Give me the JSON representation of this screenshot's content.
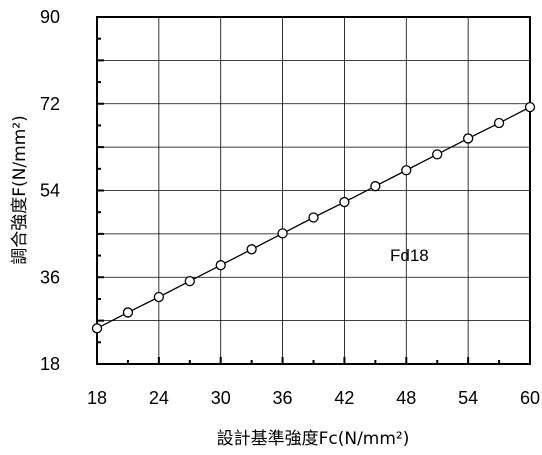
{
  "chart_data": {
    "type": "line",
    "series": [
      {
        "x": [
          18,
          21,
          24,
          27,
          30,
          33,
          36,
          39,
          42,
          45,
          48,
          51,
          54,
          57,
          60
        ],
        "y": [
          25.4,
          28.7,
          31.9,
          35.2,
          38.5,
          41.8,
          45.1,
          48.4,
          51.6,
          54.9,
          58.2,
          61.5,
          64.8,
          68.0,
          71.3
        ]
      }
    ],
    "xlabel": "設計基準強度Fc(N/mm²)",
    "ylabel": "調合強度F(N/mm²)",
    "xlim": [
      18,
      60
    ],
    "ylim": [
      18,
      90
    ],
    "xticks": [
      "18",
      "24",
      "30",
      "36",
      "42",
      "48",
      "54",
      "60"
    ],
    "yticks": [
      "18",
      "36",
      "54",
      "72",
      "90"
    ],
    "annotation": "Fd18",
    "grid": true,
    "legend": false
  }
}
